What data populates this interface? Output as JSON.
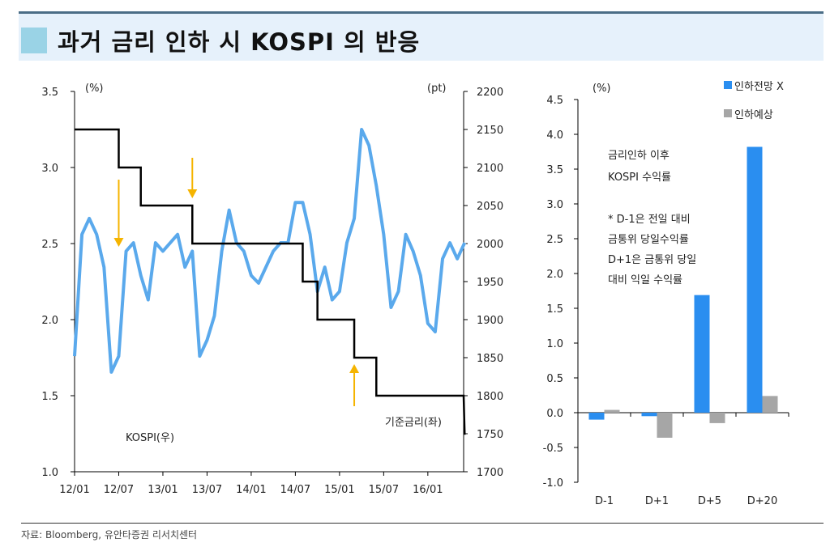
{
  "title": "과거 금리 인하 시 KOSPI 의 반응",
  "footer": "자료: Bloomberg, 유안타증권 리서치센터",
  "colors": {
    "kospi": "#5aa9ec",
    "rate": "#000000",
    "arrow": "#f5b400",
    "bar_blue": "#2a8ef0",
    "bar_gray": "#a6a6a6",
    "title_bg": "#e6f1fb",
    "title_square": "#9ad3e6"
  },
  "chart_data": [
    {
      "type": "line",
      "left_unit": "(%)",
      "right_unit": "(pt)",
      "left_ylim": [
        1.0,
        3.5
      ],
      "left_ticks": [
        "1.0",
        "1.5",
        "2.0",
        "2.5",
        "3.0",
        "3.5"
      ],
      "right_ylim": [
        1700,
        2200
      ],
      "right_ticks": [
        "1700",
        "1750",
        "1800",
        "1850",
        "1900",
        "1950",
        "2000",
        "2050",
        "2100",
        "2150",
        "2200"
      ],
      "x_ticks": [
        "12/01",
        "12/07",
        "13/01",
        "13/07",
        "14/01",
        "14/07",
        "15/01",
        "15/07",
        "16/01"
      ],
      "series": [
        {
          "name": "기준금리(좌)",
          "axis": "left",
          "step": true,
          "x": [
            "2012-01",
            "2012-07",
            "2012-10",
            "2013-05",
            "2014-08",
            "2014-10",
            "2015-03",
            "2015-06",
            "2016-06"
          ],
          "values": [
            3.25,
            3.0,
            2.75,
            2.5,
            2.25,
            2.0,
            1.75,
            1.5,
            1.25
          ]
        },
        {
          "name": "KOSPI(우)",
          "axis": "right",
          "x": [
            "2012-01",
            "2012-02",
            "2012-03",
            "2012-04",
            "2012-05",
            "2012-06",
            "2012-07",
            "2012-08",
            "2012-09",
            "2012-10",
            "2012-11",
            "2012-12",
            "2013-01",
            "2013-02",
            "2013-03",
            "2013-04",
            "2013-05",
            "2013-06",
            "2013-07",
            "2013-08",
            "2013-09",
            "2013-10",
            "2013-11",
            "2013-12",
            "2014-01",
            "2014-02",
            "2014-03",
            "2014-04",
            "2014-05",
            "2014-06",
            "2014-07",
            "2014-08",
            "2014-09",
            "2014-10",
            "2014-11",
            "2014-12",
            "2015-01",
            "2015-02",
            "2015-03",
            "2015-04",
            "2015-05",
            "2015-06",
            "2015-07",
            "2015-08",
            "2015-09",
            "2015-10",
            "2015-11",
            "2015-12",
            "2016-01",
            "2016-02",
            "2016-03",
            "2016-04",
            "2016-05",
            "2016-06"
          ],
          "values": [
            1852,
            2012,
            2033,
            2012,
            1969,
            1831,
            1852,
            1990,
            2001,
            1958,
            1926,
            2001,
            1990,
            2001,
            2012,
            1969,
            1990,
            1852,
            1873,
            1905,
            1990,
            2044,
            2001,
            1990,
            1958,
            1948,
            1969,
            1990,
            2001,
            2001,
            2054,
            2054,
            2012,
            1937,
            1969,
            1926,
            1937,
            2001,
            2033,
            2150,
            2129,
            2076,
            2012,
            1916,
            1937,
            2012,
            1990,
            1958,
            1895,
            1884,
            1980,
            2001,
            1980,
            2001
          ]
        }
      ],
      "arrows": [
        {
          "x": "2012-07",
          "direction": "down"
        },
        {
          "x": "2013-05",
          "direction": "down"
        },
        {
          "x": "2015-03",
          "direction": "up"
        }
      ]
    },
    {
      "type": "bar",
      "unit": "(%)",
      "ylim": [
        -1.0,
        4.5
      ],
      "y_ticks": [
        "-1.0",
        "-0.5",
        "0.0",
        "0.5",
        "1.0",
        "1.5",
        "2.0",
        "2.5",
        "3.0",
        "3.5",
        "4.0",
        "4.5"
      ],
      "categories": [
        "D-1",
        "D+1",
        "D+5",
        "D+20"
      ],
      "series": [
        {
          "name": "인하전망 X",
          "values": [
            -0.1,
            -0.05,
            1.69,
            3.82
          ]
        },
        {
          "name": "인하예상",
          "values": [
            0.04,
            -0.36,
            -0.15,
            0.24
          ]
        }
      ],
      "annotation_title": [
        "금리인하 이후",
        "KOSPI 수익률"
      ],
      "annotation_note": [
        "* D-1은 전일 대비",
        "금통위  당일수익률",
        "D+1은 금통위 당일",
        "대비 익일 수익률"
      ],
      "legend": "top-right"
    }
  ]
}
